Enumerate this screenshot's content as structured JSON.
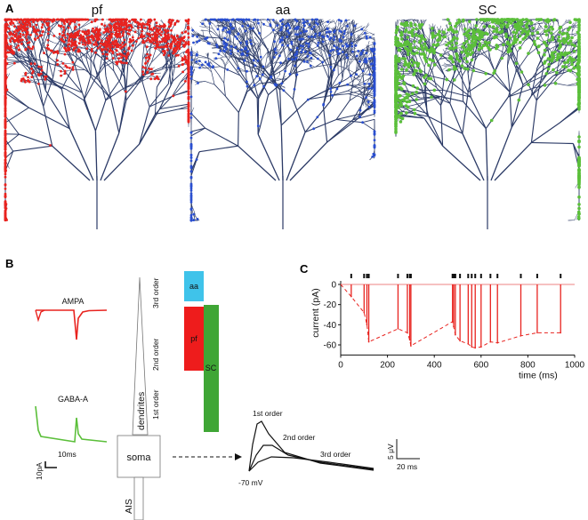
{
  "panel_a": {
    "letter": "A",
    "trees": [
      {
        "title": "pf",
        "color": "#e8231f"
      },
      {
        "title": "aa",
        "color": "#2a4fd0"
      },
      {
        "title": "SC",
        "color": "#5bbf3a"
      }
    ],
    "dendrite_color": "#2b3a66"
  },
  "panel_b": {
    "letter": "B",
    "ampa_label": "AMPA",
    "gaba_label": "GABA-A",
    "scale_time": "10ms",
    "scale_current": "10pA",
    "dendrites_label": "dendrites",
    "order_labels": [
      "3rd order",
      "2nd order",
      "1st order"
    ],
    "soma_label": "soma",
    "ais_label": "AIS",
    "blocks": [
      {
        "label": "aa",
        "color": "#3fc3ea"
      },
      {
        "label": "pf",
        "color": "#ee1c1c"
      },
      {
        "label": "SC",
        "color": "#3fa635"
      }
    ],
    "epsp_labels": [
      "1st order",
      "2nd order",
      "3rd order"
    ],
    "resting": "-70 mV",
    "scale_voltage": "5 μV",
    "scale_time2": "20 ms"
  },
  "chart_data": {
    "type": "line",
    "title": "",
    "xlabel": "time (ms)",
    "ylabel": "current (pA)",
    "xlim": [
      0,
      1000
    ],
    "ylim": [
      -70,
      5
    ],
    "xticks": [
      0,
      200,
      400,
      600,
      800,
      1000
    ],
    "yticks": [
      0,
      -20,
      -40,
      -60
    ],
    "colors": {
      "trace": "#e8231f",
      "zero_line": "#f19c9c",
      "spikes": "#111111"
    },
    "spike_times": [
      45,
      100,
      112,
      120,
      245,
      285,
      295,
      300,
      478,
      483,
      490,
      510,
      545,
      560,
      575,
      600,
      640,
      670,
      770,
      840,
      940
    ],
    "series": [
      {
        "x": [
          0,
          45,
          100,
          112,
          120,
          245,
          285,
          295,
          300,
          478,
          483,
          490,
          510,
          545,
          560,
          575,
          600,
          640,
          670,
          770,
          840,
          940
        ],
        "values": [
          0,
          -12,
          -28,
          -40,
          -57,
          -44,
          -48,
          -55,
          -61,
          -37,
          -42,
          -50,
          -56,
          -59,
          -62,
          -63,
          -62,
          -57,
          -58,
          -51,
          -48,
          -48
        ]
      }
    ]
  },
  "panel_c": {
    "letter": "C"
  }
}
